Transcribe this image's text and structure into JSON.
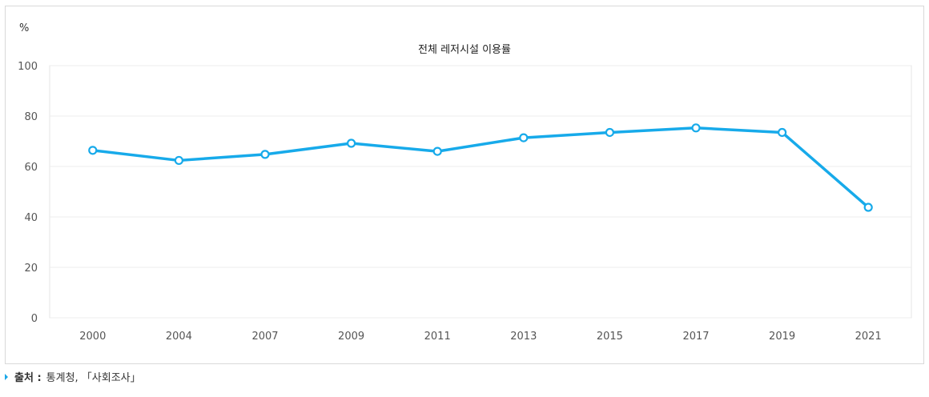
{
  "chart_data": {
    "type": "line",
    "title": "전체 레저시설 이용률",
    "ylabel": "%",
    "xlabel": "",
    "categories": [
      "2000",
      "2004",
      "2007",
      "2009",
      "2011",
      "2013",
      "2015",
      "2017",
      "2019",
      "2021"
    ],
    "series": [
      {
        "values": [
          66.4,
          62.4,
          64.8,
          69.2,
          66.0,
          71.4,
          73.5,
          75.3,
          73.5,
          43.8
        ]
      }
    ],
    "ylim": [
      0,
      100
    ],
    "yticks": [
      "0",
      "20",
      "40",
      "60",
      "80",
      "100"
    ],
    "grid": true,
    "line_color": "#17aaea"
  },
  "source": {
    "label": "출처 :",
    "text": "통계청, 「사회조사」"
  }
}
